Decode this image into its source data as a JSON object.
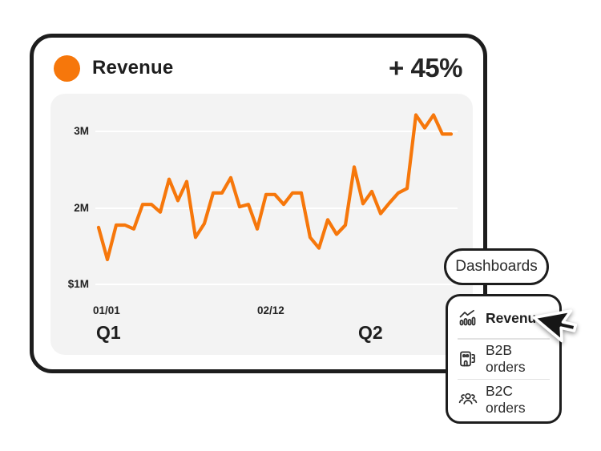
{
  "card": {
    "header": {
      "legend_dot_color": "#F6770B",
      "title": "Revenue",
      "change_badge": "+ 45%"
    }
  },
  "chart_data": {
    "type": "line",
    "title": "Revenue",
    "unit": "USD millions",
    "panel_background": "#f3f3f3",
    "grid": true,
    "gridline_color": "#ffffff",
    "y_axis": {
      "ticks": [
        {
          "label": "3M",
          "value": 3
        },
        {
          "label": "2M",
          "value": 2
        },
        {
          "label": "$1M",
          "value": 1
        }
      ],
      "range_millions": [
        0.95,
        3.55
      ]
    },
    "x_axis": {
      "date_ticks": [
        {
          "label": "01/01",
          "position": "start"
        },
        {
          "label": "02/12",
          "position": "middle"
        }
      ],
      "quarter_labels": [
        {
          "label": "Q1",
          "position": "start"
        },
        {
          "label": "Q2",
          "position": "right-of-middle"
        }
      ]
    },
    "series": [
      {
        "name": "Revenue",
        "color": "#F6770B",
        "values_millions": [
          1.75,
          1.33,
          1.78,
          1.78,
          1.73,
          2.05,
          2.05,
          1.95,
          2.38,
          2.1,
          2.35,
          1.62,
          1.8,
          2.2,
          2.2,
          2.4,
          2.02,
          2.05,
          1.73,
          2.18,
          2.18,
          2.05,
          2.2,
          2.2,
          1.62,
          1.48,
          1.85,
          1.66,
          1.78,
          2.54,
          2.06,
          2.22,
          1.93,
          2.07,
          2.2,
          2.26,
          3.22,
          3.05,
          3.22,
          2.97,
          2.97
        ]
      }
    ],
    "legend_position": "top-left-header"
  },
  "dropdown": {
    "trigger_label": "Dashboards",
    "menu_items": [
      {
        "label": "Revenue",
        "icon": "bar-chart-trend-icon",
        "active": true
      },
      {
        "label": "B2B orders",
        "icon": "building-icon",
        "active": false
      },
      {
        "label": "B2C orders",
        "icon": "people-group-icon",
        "active": false
      }
    ]
  },
  "cursor": {
    "shape": "mouse-pointer-arrow",
    "fill": "#161616",
    "outline": "#ffffff"
  },
  "colors": {
    "accent_orange": "#F6770B",
    "outline_dark": "#1d1d1d",
    "text_primary": "#1e1e1e",
    "divider": "#e2e2e2"
  }
}
